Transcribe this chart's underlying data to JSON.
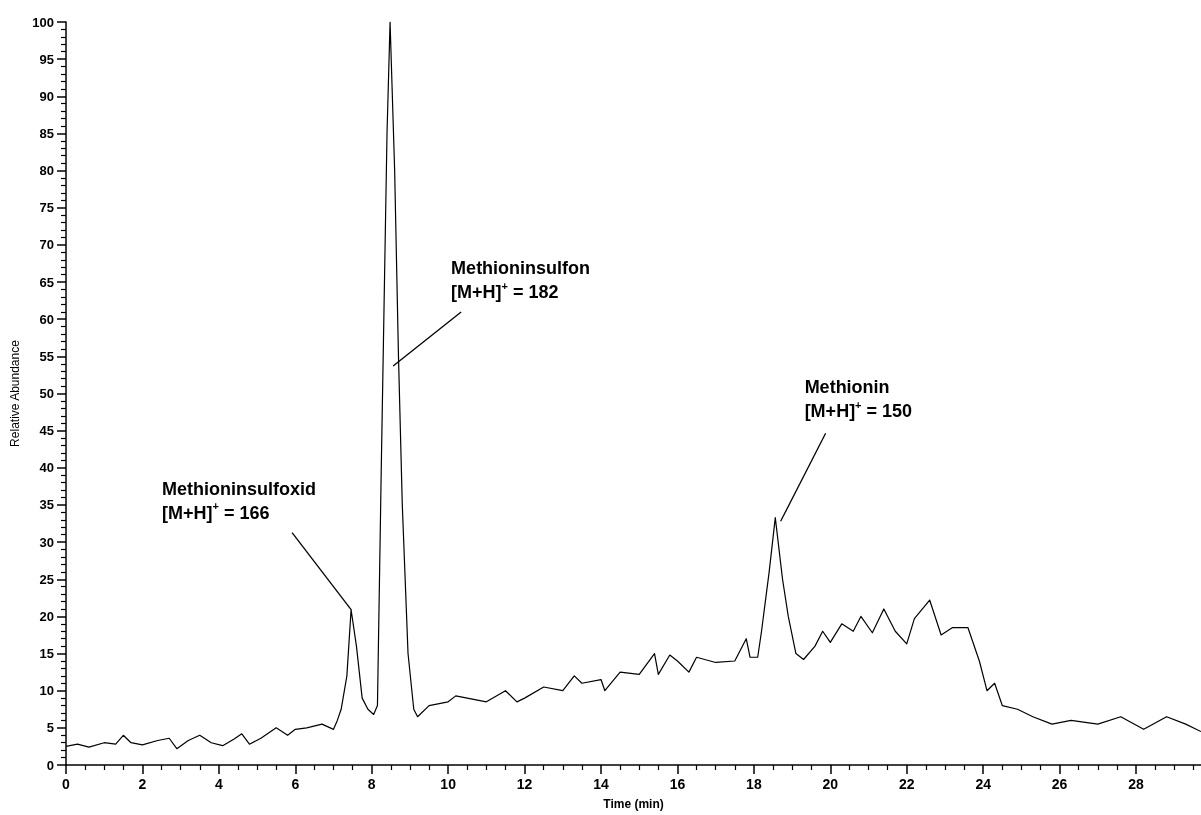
{
  "chart_data": {
    "type": "line",
    "xlabel": "Time (min)",
    "ylabel": "Relative Abundance",
    "xlim": [
      0,
      29.7
    ],
    "xticks": [
      0,
      2,
      4,
      6,
      8,
      10,
      12,
      14,
      16,
      18,
      20,
      22,
      24,
      26,
      28
    ],
    "ylim": [
      0,
      100
    ],
    "yticks": [
      0,
      5,
      10,
      15,
      20,
      25,
      30,
      35,
      40,
      45,
      50,
      55,
      60,
      65,
      70,
      75,
      80,
      85,
      90,
      95,
      100
    ],
    "grid": false,
    "marker": "none",
    "line_style": "solid",
    "series": [
      {
        "color": "#000000",
        "x": [
          0,
          0.3,
          0.6,
          1.0,
          1.3,
          1.5,
          1.7,
          2.0,
          2.4,
          2.7,
          2.9,
          3.2,
          3.5,
          3.8,
          4.1,
          4.4,
          4.6,
          4.8,
          5.1,
          5.5,
          5.8,
          6.0,
          6.3,
          6.7,
          7.0,
          7.1,
          7.2,
          7.35,
          7.46,
          7.6,
          7.75,
          7.9,
          8.05,
          8.15,
          8.25,
          8.4,
          8.48,
          8.6,
          8.7,
          8.8,
          8.95,
          9.1,
          9.2,
          9.5,
          10.0,
          10.2,
          10.5,
          11.0,
          11.5,
          11.8,
          12.0,
          12.5,
          13.0,
          13.3,
          13.5,
          14.0,
          14.1,
          14.5,
          15.0,
          15.4,
          15.5,
          15.8,
          16.0,
          16.3,
          16.5,
          17.0,
          17.5,
          17.8,
          17.9,
          18.1,
          18.2,
          18.4,
          18.56,
          18.75,
          18.9,
          19.1,
          19.3,
          19.6,
          19.8,
          20.0,
          20.3,
          20.6,
          20.8,
          21.1,
          21.4,
          21.7,
          22.0,
          22.2,
          22.6,
          22.9,
          23.2,
          23.6,
          23.9,
          24.1,
          24.3,
          24.5,
          24.9,
          25.3,
          25.8,
          26.3,
          27.0,
          27.6,
          28.2,
          28.8,
          29.3,
          29.7
        ],
        "values": [
          2.5,
          2.8,
          2.4,
          3.0,
          2.8,
          4.0,
          3.0,
          2.7,
          3.3,
          3.6,
          2.2,
          3.3,
          4.0,
          3.0,
          2.6,
          3.5,
          4.2,
          2.8,
          3.6,
          5.0,
          4.0,
          4.8,
          5.0,
          5.5,
          4.8,
          6.0,
          7.5,
          12.0,
          20.9,
          16.0,
          9.0,
          7.5,
          6.8,
          8.0,
          40.0,
          85.0,
          100,
          80.0,
          55.0,
          35.0,
          15.0,
          7.5,
          6.5,
          8.0,
          8.5,
          9.3,
          9.0,
          8.5,
          10.0,
          8.5,
          9.0,
          10.5,
          10.0,
          12.0,
          11.0,
          11.5,
          10.0,
          12.5,
          12.2,
          15.0,
          12.2,
          14.8,
          14.0,
          12.5,
          14.5,
          13.8,
          14.0,
          17.0,
          14.5,
          14.5,
          18.0,
          26.0,
          33.3,
          25.0,
          20.0,
          15.0,
          14.2,
          16.0,
          18.0,
          16.5,
          19.0,
          18.0,
          20.0,
          17.8,
          21.0,
          18.0,
          16.3,
          19.7,
          22.2,
          17.5,
          18.5,
          18.5,
          14.0,
          10.0,
          11.0,
          8.0,
          7.5,
          6.5,
          5.5,
          6.0,
          5.5,
          6.5,
          4.8,
          6.5,
          5.5,
          4.5
        ]
      }
    ],
    "annotations": [
      {
        "text": "Methioninsulfoxid\n[M+H]$^{+}$ = 166",
        "x": 7.46,
        "y": 20.9
      },
      {
        "text": "Methioninsulfon\n[M+H]$^{+}$ = 182",
        "x": 8.56,
        "y": 53.7
      },
      {
        "text": "Methionin\n[M+H]$^{+}$ = 150",
        "x": 18.7,
        "y": 32.8
      }
    ]
  }
}
